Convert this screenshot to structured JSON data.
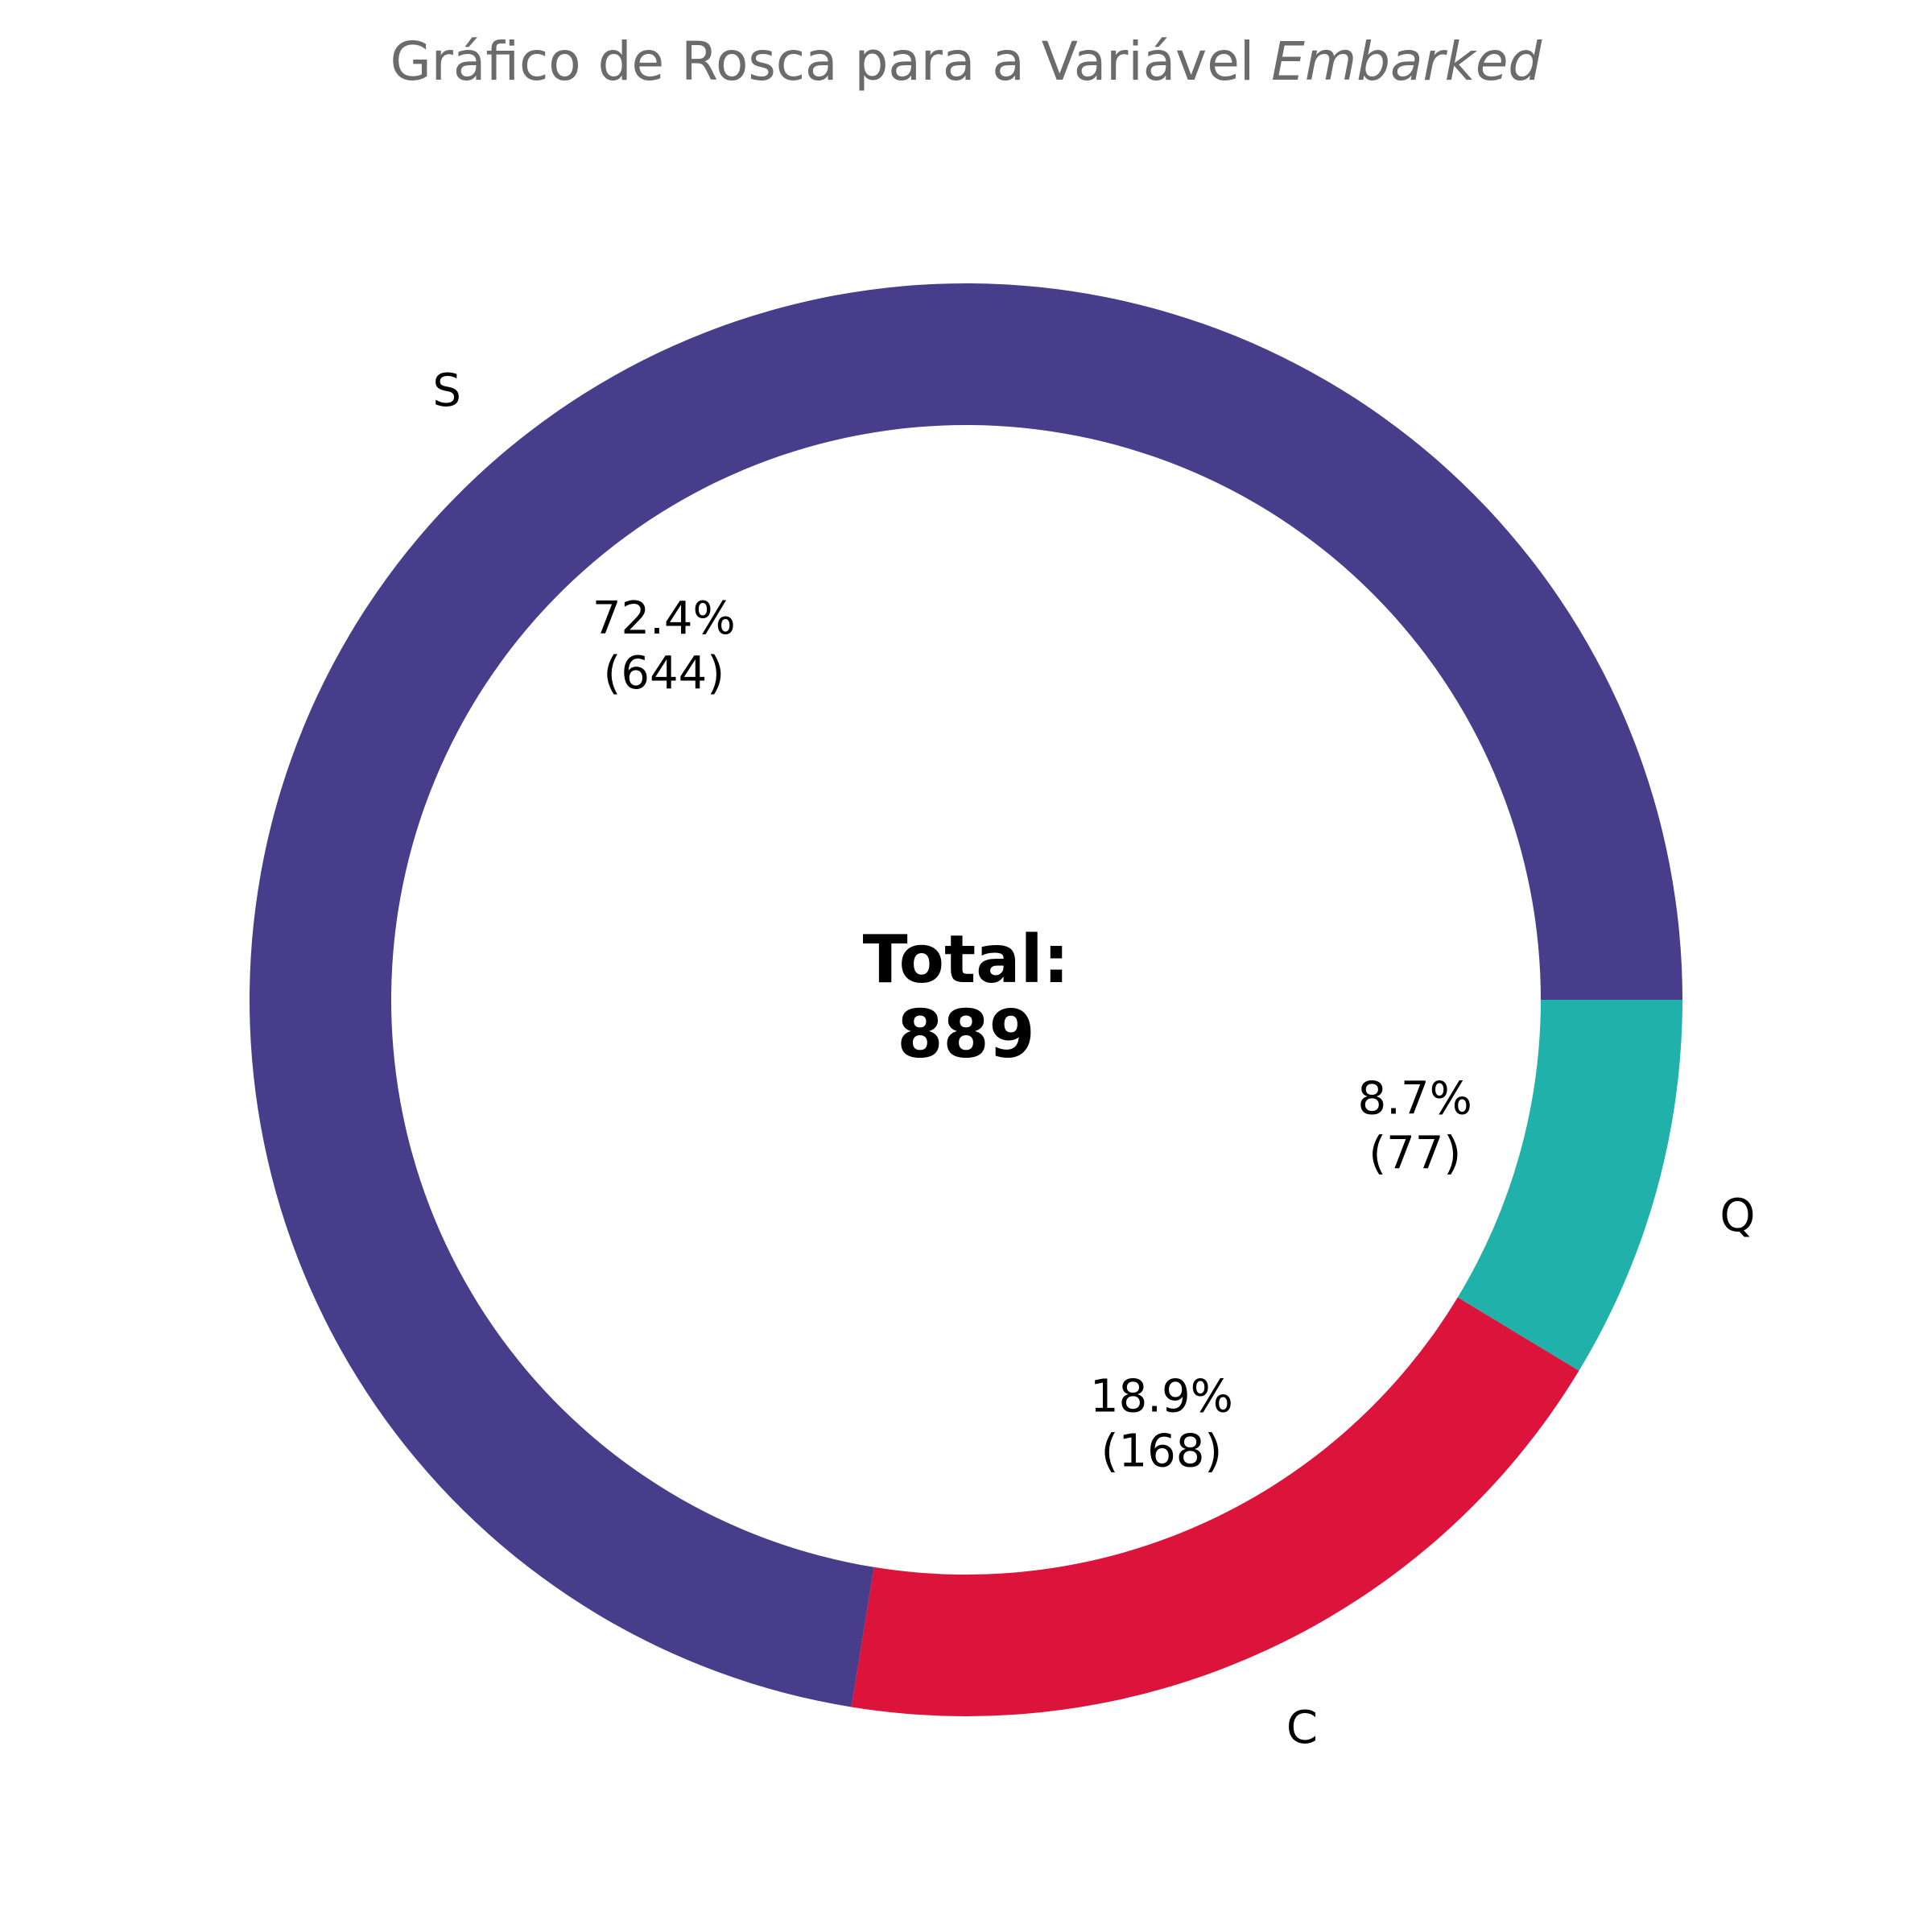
{
  "chart_data": {
    "type": "pie",
    "variant": "donut",
    "title": "Gráfico de Rosca para a Variável",
    "title_italic": "Embarked",
    "categories": [
      "Q",
      "C",
      "S"
    ],
    "values": [
      77,
      168,
      644
    ],
    "percent_labels": [
      "8.7%",
      "18.9%",
      "72.4%"
    ],
    "count_labels": [
      "(77)",
      "(168)",
      "(644)"
    ],
    "colors": [
      "#20b2aa",
      "#dc143c",
      "#483d8b"
    ],
    "center_label": "Total:",
    "center_value": "889",
    "start_angle_deg": 0,
    "direction": "clockwise"
  }
}
